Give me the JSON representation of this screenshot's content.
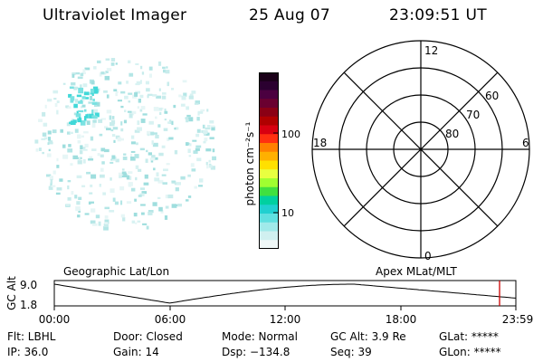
{
  "header": {
    "instrument": "Ultraviolet Imager",
    "date": "25 Aug 07",
    "time": "23:09:51 UT"
  },
  "colorbar": {
    "label": "photon cm⁻²s⁻¹",
    "ticks": [
      "100",
      "10"
    ],
    "colors": [
      "#1a0018",
      "#2b0030",
      "#4b0040",
      "#6a0030",
      "#8a0015",
      "#b00000",
      "#d80010",
      "#ff3010",
      "#ff8000",
      "#ffb000",
      "#ffe000",
      "#e8ff40",
      "#a0ff30",
      "#40e040",
      "#00d0a0",
      "#20d0d0",
      "#60e0e0",
      "#a0eaea",
      "#d0f0f0",
      "#f0f8f8"
    ]
  },
  "polar": {
    "mlt_labels": {
      "top": "12",
      "bottom": "0",
      "left": "18",
      "right": "6"
    },
    "lat_labels": [
      "60",
      "70",
      "80"
    ]
  },
  "altitude_plot": {
    "ylabel": "GC Alt",
    "yticks": [
      "9.0",
      "1.8"
    ],
    "left_title": "Geographic Lat/Lon",
    "right_title": "Apex MLat/MLT",
    "xticks": [
      "00:00",
      "06:00",
      "12:00",
      "18:00",
      "23:59"
    ],
    "marker_color": "#cc0000"
  },
  "info": {
    "filter": "Flt: LBHL",
    "ip": "IP: 36.0",
    "door": "Door: Closed",
    "gain": "Gain: 14",
    "mode": "Mode: Normal",
    "dsp": "Dsp: −134.8",
    "gc_alt": "GC Alt: 3.9 Re",
    "seq": "Seq: 39",
    "glat": "GLat: *****",
    "glon": "GLon: *****"
  }
}
